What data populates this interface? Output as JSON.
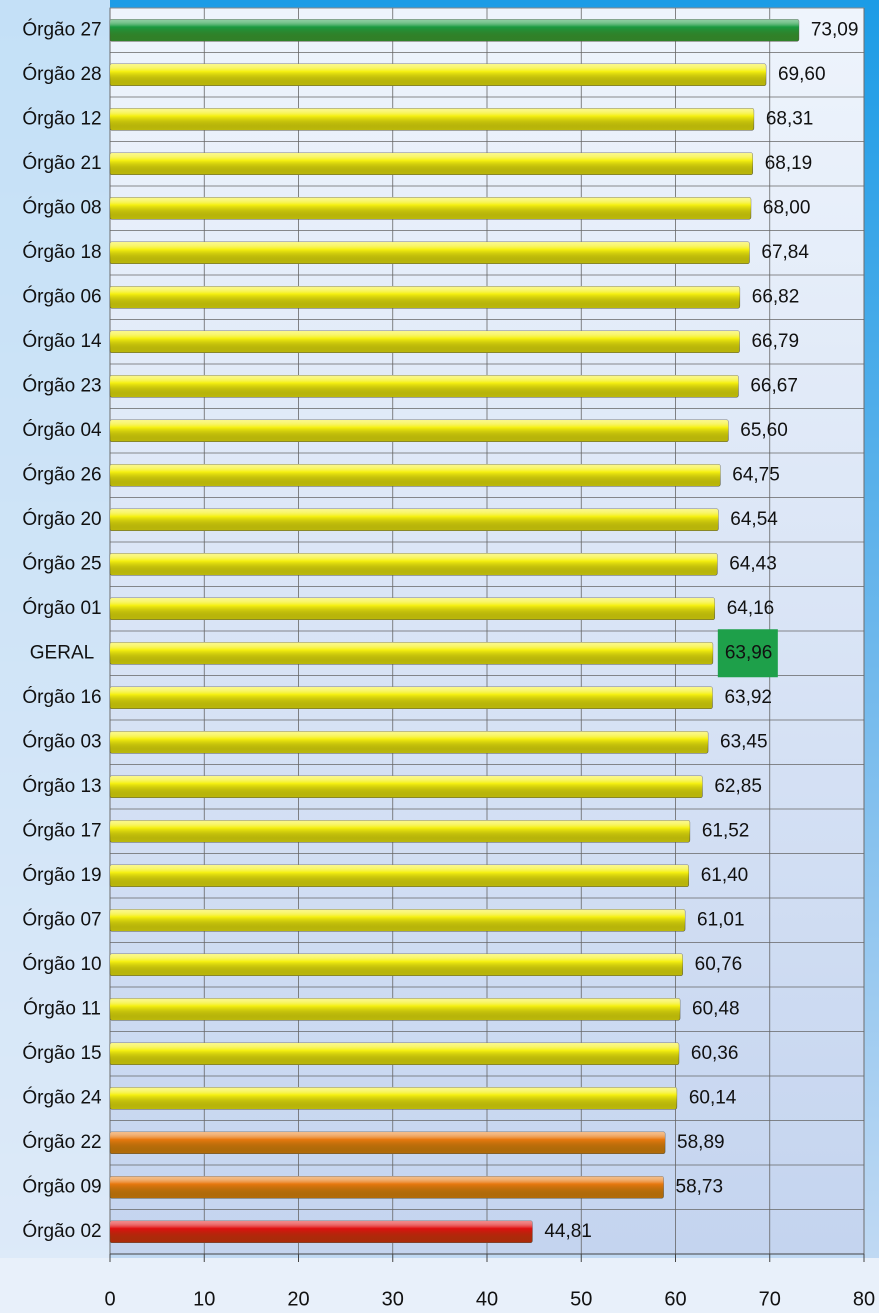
{
  "chart_data": {
    "type": "hbar",
    "categories": [
      "Órgão 27",
      "Órgão 28",
      "Órgão 12",
      "Órgão 21",
      "Órgão 08",
      "Órgão 18",
      "Órgão 06",
      "Órgão 14",
      "Órgão 23",
      "Órgão 04",
      "Órgão 26",
      "Órgão 20",
      "Órgão 25",
      "Órgão 01",
      "GERAL",
      "Órgão 16",
      "Órgão 03",
      "Órgão 13",
      "Órgão 17",
      "Órgão 19",
      "Órgão 07",
      "Órgão 10",
      "Órgão 11",
      "Órgão 15",
      "Órgão 24",
      "Órgão 22",
      "Órgão 09",
      "Órgão 02"
    ],
    "values": [
      73.09,
      69.6,
      68.31,
      68.19,
      68.0,
      67.84,
      66.82,
      66.79,
      66.67,
      65.6,
      64.75,
      64.54,
      64.43,
      64.16,
      63.96,
      63.92,
      63.45,
      62.85,
      61.52,
      61.4,
      61.01,
      60.76,
      60.48,
      60.36,
      60.14,
      58.89,
      58.73,
      44.81
    ],
    "value_labels": [
      "73,09",
      "69,60",
      "68,31",
      "68,19",
      "68,00",
      "67,84",
      "66,82",
      "66,79",
      "66,67",
      "65,60",
      "64,75",
      "64,54",
      "64,43",
      "64,16",
      "63,96",
      "63,92",
      "63,45",
      "62,85",
      "61,52",
      "61,40",
      "61,01",
      "60,76",
      "60,48",
      "60,36",
      "60,14",
      "58,89",
      "58,73",
      "44,81"
    ],
    "colors": [
      "#1a9a40",
      "#f5f010",
      "#f5f010",
      "#f5f010",
      "#f5f010",
      "#f5f010",
      "#f5f010",
      "#f5f010",
      "#f5f010",
      "#f5f010",
      "#f5f010",
      "#f5f010",
      "#f5f010",
      "#f5f010",
      "#f5f010",
      "#f5f010",
      "#f5f010",
      "#f5f010",
      "#f5f010",
      "#f5f010",
      "#f5f010",
      "#f5f010",
      "#f5f010",
      "#f5f010",
      "#f5f010",
      "#e8780f",
      "#e8780f",
      "#e01010"
    ],
    "label_backgrounds": [
      null,
      null,
      null,
      null,
      null,
      null,
      null,
      null,
      null,
      null,
      null,
      null,
      null,
      null,
      "#1ea04a",
      null,
      null,
      null,
      null,
      null,
      null,
      null,
      null,
      null,
      null,
      null,
      null,
      null
    ],
    "xlim": [
      0,
      80
    ],
    "xticks": [
      0,
      10,
      20,
      30,
      40,
      50,
      60,
      70,
      80
    ],
    "grid": true
  }
}
